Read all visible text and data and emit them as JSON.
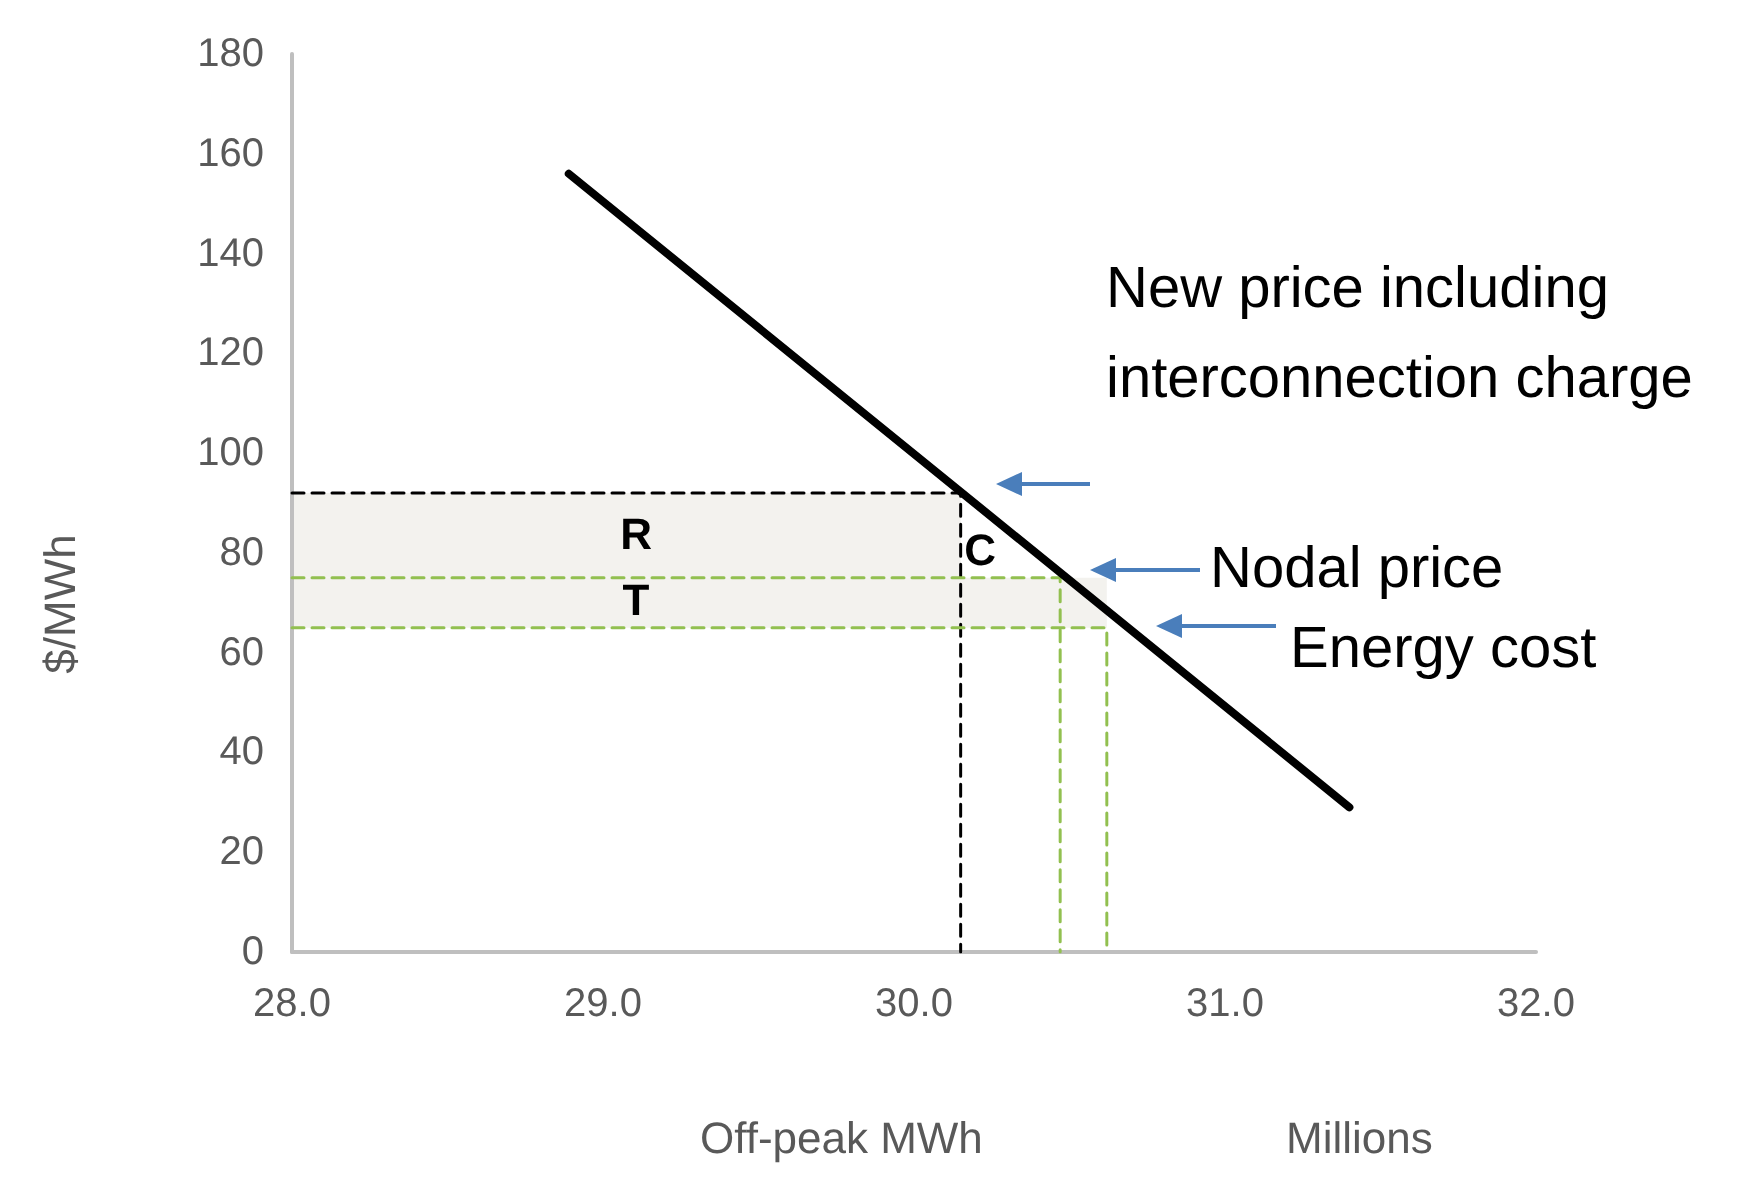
{
  "chart_data": {
    "type": "line",
    "xlabel": "Off-peak MWh",
    "ylabel": "$/MWh",
    "xlim": [
      28,
      32
    ],
    "xticks": [
      {
        "value": 28,
        "label": "28.0"
      },
      {
        "value": 29,
        "label": "29.0"
      },
      {
        "value": 30,
        "label": "30.0"
      },
      {
        "value": 31,
        "label": "31.0"
      },
      {
        "value": 32,
        "label": "32.0"
      }
    ],
    "ylim": [
      0,
      180
    ],
    "yticks": [
      0,
      20,
      40,
      60,
      80,
      100,
      120,
      140,
      160,
      180
    ],
    "grid": false,
    "marker": "none",
    "series": [
      {
        "x": [
          28.89,
          31.4
        ],
        "values": [
          156,
          29
        ],
        "color": "#000000",
        "line_style": "solid"
      },
      {
        "x": [
          28,
          30.15,
          30.15
        ],
        "values": [
          92,
          92,
          0
        ],
        "lower": [
          75,
          75,
          null
        ],
        "upper": [
          92,
          92,
          null
        ],
        "color": "#000000",
        "line_style": "dashed"
      },
      {
        "x": [
          28,
          30.47,
          30.47
        ],
        "values": [
          75,
          75,
          0
        ],
        "color": "#92c050",
        "line_style": "dashed"
      },
      {
        "x": [
          28,
          30.62,
          30.62
        ],
        "values": [
          65,
          65,
          0
        ],
        "lower": [
          65,
          65,
          null
        ],
        "upper": [
          75,
          75,
          null
        ],
        "color": "#92c050",
        "line_style": "dashed"
      }
    ],
    "annotations": [
      "R",
      "T",
      "C",
      "New price including interconnection charge",
      "Nodal price",
      "Energy cost",
      "Millions"
    ]
  }
}
